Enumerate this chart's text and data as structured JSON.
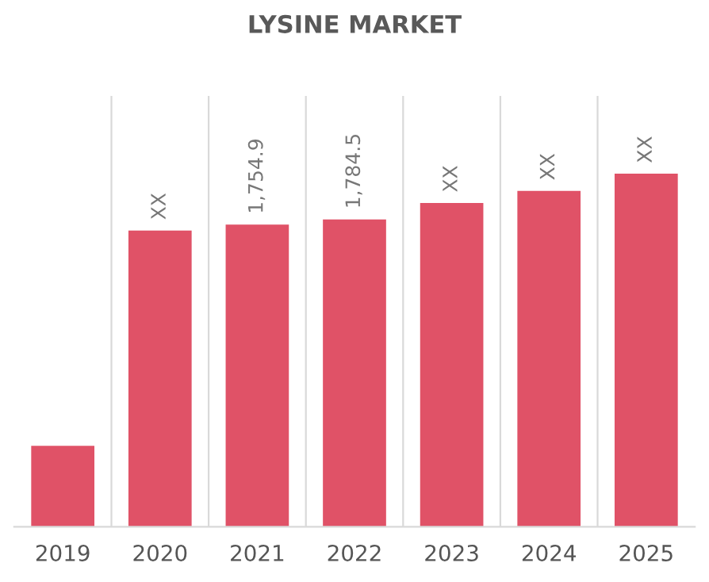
{
  "chart_data": {
    "type": "bar",
    "title": "LYSINE MARKET",
    "categories": [
      "2019",
      "2020",
      "2021",
      "2022",
      "2023",
      "2024",
      "2025"
    ],
    "values": [
      470,
      1720,
      1754.9,
      1784.5,
      1880,
      1950,
      2050
    ],
    "value_labels": [
      null,
      "XX",
      "1,754.9",
      "1,784.5",
      "XX",
      "XX",
      "XX"
    ],
    "color": "#e05267",
    "grid": "x"
  }
}
